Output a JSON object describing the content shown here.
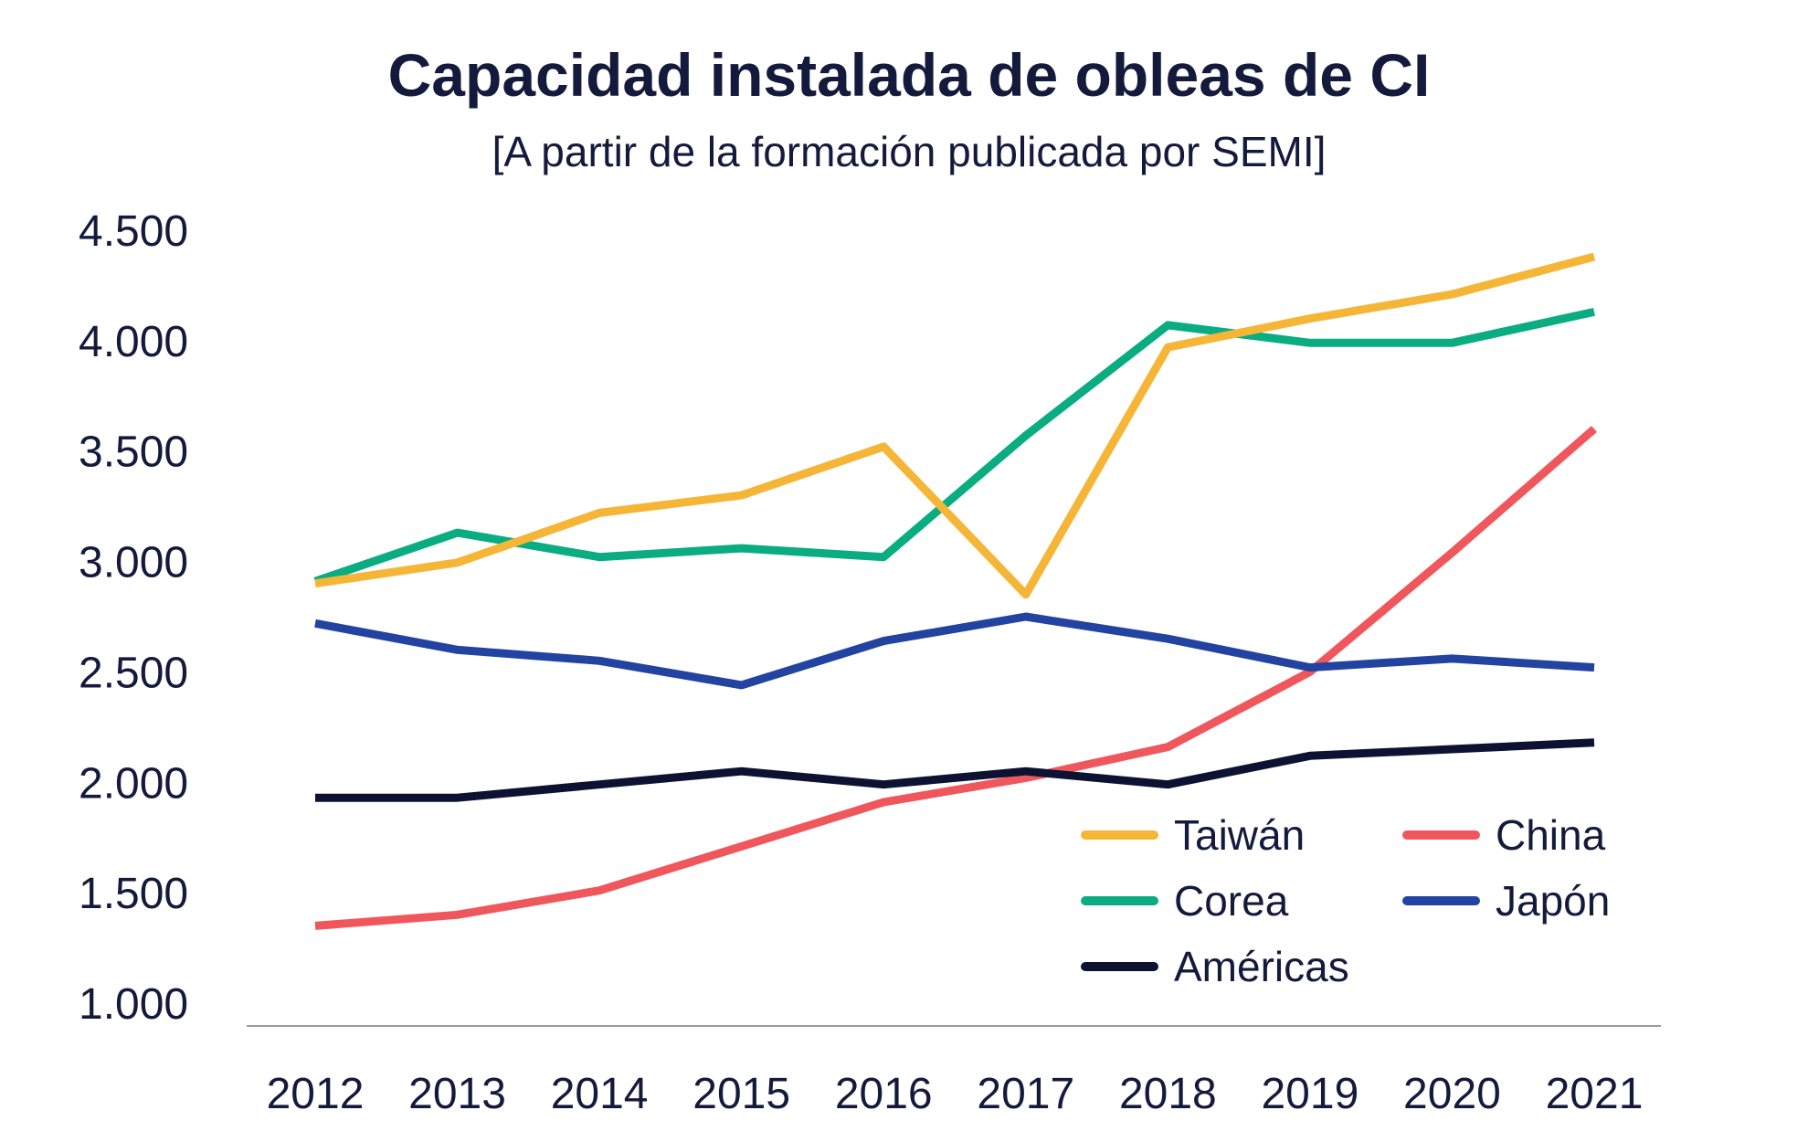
{
  "chart_data": {
    "type": "line",
    "title": "Capacidad instalada de obleas de CI",
    "subtitle": "[A partir de la formación publicada por SEMI]",
    "xlabel": "",
    "ylabel": "",
    "categories": [
      "2012",
      "2013",
      "2014",
      "2015",
      "2016",
      "2017",
      "2018",
      "2019",
      "2020",
      "2021"
    ],
    "ylim": [
      1000,
      4500
    ],
    "yticks": [
      1000,
      1500,
      2000,
      2500,
      3000,
      3500,
      4000,
      4500
    ],
    "ytick_labels": [
      "1.000",
      "1.500",
      "2.000",
      "2.500",
      "3.000",
      "3.500",
      "4.000",
      "4.500"
    ],
    "grid": false,
    "legend_position": "bottom-right",
    "series": [
      {
        "name": "Taiwán",
        "color": "#f5b637",
        "values": [
          2900,
          2995,
          3220,
          3300,
          3520,
          2850,
          3970,
          4100,
          4210,
          4380
        ]
      },
      {
        "name": "Corea",
        "color": "#0aac82",
        "values": [
          2910,
          3130,
          3020,
          3060,
          3020,
          3570,
          4070,
          3990,
          3990,
          4130
        ]
      },
      {
        "name": "Américas",
        "color": "#0d1233",
        "values": [
          1930,
          1930,
          1990,
          2050,
          1990,
          2050,
          1990,
          2120,
          2150,
          2180
        ]
      },
      {
        "name": "China",
        "color": "#f0575c",
        "values": [
          1350,
          1400,
          1510,
          1710,
          1910,
          2020,
          2160,
          2500,
          3040,
          3600
        ]
      },
      {
        "name": "Japón",
        "color": "#2243a0",
        "values": [
          2720,
          2600,
          2550,
          2440,
          2640,
          2750,
          2650,
          2520,
          2560,
          2520
        ]
      }
    ]
  }
}
